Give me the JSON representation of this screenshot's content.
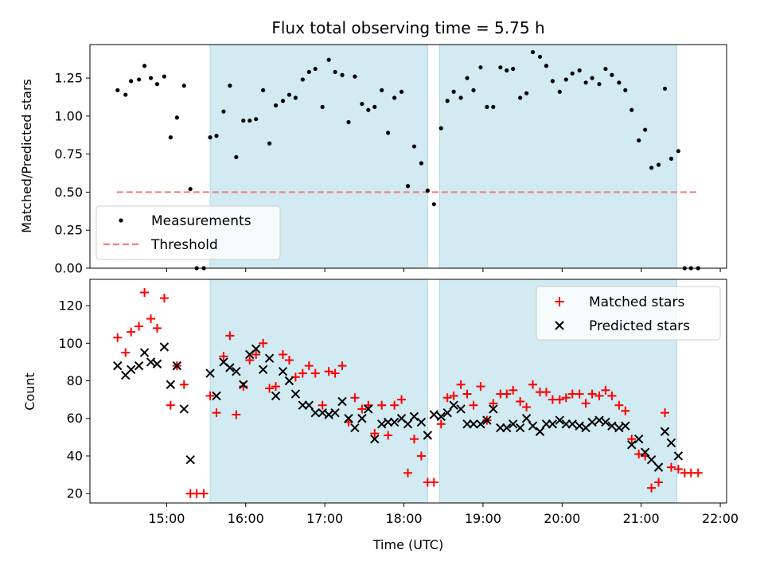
{
  "chart_data": {
    "type": "scatter",
    "title": "Flux total observing time = 5.75 h",
    "xlabel": "Time (UTC)",
    "x_ticks": [
      "15:00",
      "16:00",
      "17:00",
      "18:00",
      "19:00",
      "20:00",
      "21:00",
      "22:00"
    ],
    "x_ticks_hours": [
      15,
      16,
      17,
      18,
      19,
      20,
      21,
      22
    ],
    "xlim_hours": [
      14.03,
      22.08
    ],
    "colors": {
      "band": "#add8e6",
      "measurements": "#000000",
      "threshold": "#f08080",
      "matched": "#ff0000",
      "predicted": "#000000"
    },
    "observing_windows_hours": [
      [
        15.55,
        18.3
      ],
      [
        18.45,
        21.45
      ]
    ],
    "panels": [
      {
        "ylabel": "Matched/Predicted stars",
        "ylim": [
          0,
          1.47
        ],
        "y_ticks": [
          "0.00",
          "0.25",
          "0.50",
          "0.75",
          "1.00",
          "1.25"
        ],
        "y_tick_values": [
          0,
          0.25,
          0.5,
          0.75,
          1.0,
          1.25
        ],
        "legend_position": "lower-left",
        "legend": [
          "Measurements",
          "Threshold"
        ],
        "threshold": {
          "value": 0.5,
          "x_range_hours": [
            14.37,
            21.72
          ]
        },
        "series": [
          {
            "name": "Measurements",
            "marker": "dot",
            "x": [
              14.38,
              14.48,
              14.55,
              14.65,
              14.72,
              14.8,
              14.88,
              14.97,
              15.05,
              15.13,
              15.22,
              15.3,
              15.38,
              15.47,
              15.55,
              15.63,
              15.72,
              15.8,
              15.88,
              15.97,
              16.05,
              16.13,
              16.22,
              16.3,
              16.38,
              16.47,
              16.55,
              16.63,
              16.72,
              16.8,
              16.88,
              16.97,
              17.05,
              17.13,
              17.22,
              17.3,
              17.38,
              17.47,
              17.55,
              17.63,
              17.72,
              17.8,
              17.88,
              17.97,
              18.05,
              18.13,
              18.22,
              18.3,
              18.38,
              18.47,
              18.55,
              18.63,
              18.72,
              18.8,
              18.88,
              18.97,
              19.05,
              19.13,
              19.22,
              19.3,
              19.38,
              19.47,
              19.55,
              19.63,
              19.72,
              19.8,
              19.88,
              19.97,
              20.05,
              20.13,
              20.22,
              20.3,
              20.38,
              20.47,
              20.55,
              20.63,
              20.72,
              20.8,
              20.88,
              20.97,
              21.05,
              21.13,
              21.22,
              21.3,
              21.38,
              21.47,
              21.55,
              21.63,
              21.72
            ],
            "y": [
              1.17,
              1.14,
              1.23,
              1.24,
              1.33,
              1.25,
              1.21,
              1.26,
              0.86,
              0.99,
              1.2,
              0.52,
              0,
              0,
              0.86,
              0.87,
              1.03,
              1.2,
              0.73,
              0.97,
              0.97,
              0.98,
              1.17,
              0.82,
              1.07,
              1.1,
              1.14,
              1.12,
              1.24,
              1.29,
              1.31,
              1.06,
              1.37,
              1.29,
              1.27,
              0.96,
              1.26,
              1.08,
              1.04,
              1.06,
              1.17,
              0.89,
              1.12,
              1.16,
              0.54,
              0.8,
              0.69,
              0.51,
              0.42,
              0.92,
              1.1,
              1.16,
              1.12,
              1.25,
              1.17,
              1.32,
              1.06,
              1.06,
              1.32,
              1.3,
              1.31,
              1.12,
              1.15,
              1.42,
              1.39,
              1.33,
              1.23,
              1.16,
              1.24,
              1.28,
              1.3,
              1.22,
              1.25,
              1.21,
              1.31,
              1.27,
              1.22,
              1.17,
              1.04,
              0.84,
              0.91,
              0.66,
              0.68,
              1.18,
              0.72,
              0.77,
              0,
              0,
              0
            ]
          }
        ]
      },
      {
        "ylabel": "Count",
        "ylim": [
          15,
          134
        ],
        "y_ticks": [
          "20",
          "40",
          "60",
          "80",
          "100",
          "120"
        ],
        "y_tick_values": [
          20,
          40,
          60,
          80,
          100,
          120
        ],
        "legend_position": "upper-right",
        "legend": [
          "Matched stars",
          "Predicted stars"
        ],
        "series": [
          {
            "name": "Matched stars",
            "marker": "plus",
            "x": [
              14.38,
              14.48,
              14.55,
              14.65,
              14.72,
              14.8,
              14.88,
              14.97,
              15.05,
              15.13,
              15.22,
              15.3,
              15.38,
              15.47,
              15.55,
              15.63,
              15.72,
              15.8,
              15.88,
              15.97,
              16.05,
              16.13,
              16.22,
              16.3,
              16.38,
              16.47,
              16.55,
              16.63,
              16.72,
              16.8,
              16.88,
              16.97,
              17.05,
              17.13,
              17.22,
              17.3,
              17.38,
              17.47,
              17.55,
              17.63,
              17.72,
              17.8,
              17.88,
              17.97,
              18.05,
              18.13,
              18.22,
              18.3,
              18.38,
              18.47,
              18.55,
              18.63,
              18.72,
              18.8,
              18.88,
              18.97,
              19.05,
              19.13,
              19.22,
              19.3,
              19.38,
              19.47,
              19.55,
              19.63,
              19.72,
              19.8,
              19.88,
              19.97,
              20.05,
              20.13,
              20.22,
              20.3,
              20.38,
              20.47,
              20.55,
              20.63,
              20.72,
              20.8,
              20.88,
              20.97,
              21.05,
              21.13,
              21.22,
              21.3,
              21.38,
              21.47,
              21.55,
              21.63,
              21.72
            ],
            "y": [
              103,
              95,
              106,
              109,
              127,
              113,
              108,
              124,
              67,
              88,
              78,
              20,
              20,
              20,
              72,
              63,
              93,
              104,
              62,
              77,
              91,
              94,
              100,
              76,
              77,
              94,
              91,
              82,
              84,
              88,
              84,
              67,
              85,
              84,
              88,
              58,
              71,
              65,
              67,
              52,
              67,
              51,
              67,
              70,
              31,
              49,
              40,
              26,
              26,
              57,
              71,
              72,
              78,
              73,
              67,
              77,
              59,
              68,
              73,
              73,
              75,
              69,
              66,
              78,
              74,
              74,
              70,
              70,
              71,
              73,
              73,
              68,
              73,
              72,
              75,
              72,
              67,
              64,
              49,
              41,
              40,
              23,
              26,
              63,
              34,
              33,
              31,
              31,
              31
            ]
          },
          {
            "name": "Predicted stars",
            "marker": "x",
            "x": [
              14.38,
              14.48,
              14.55,
              14.65,
              14.72,
              14.8,
              14.88,
              14.97,
              15.05,
              15.13,
              15.22,
              15.3,
              15.55,
              15.63,
              15.72,
              15.8,
              15.88,
              15.97,
              16.05,
              16.13,
              16.22,
              16.3,
              16.38,
              16.47,
              16.55,
              16.63,
              16.72,
              16.8,
              16.88,
              16.97,
              17.05,
              17.13,
              17.22,
              17.3,
              17.38,
              17.47,
              17.55,
              17.63,
              17.72,
              17.8,
              17.88,
              17.97,
              18.05,
              18.13,
              18.22,
              18.3,
              18.38,
              18.47,
              18.55,
              18.63,
              18.72,
              18.8,
              18.88,
              18.97,
              19.05,
              19.13,
              19.22,
              19.3,
              19.38,
              19.47,
              19.55,
              19.63,
              19.72,
              19.8,
              19.88,
              19.97,
              20.05,
              20.13,
              20.22,
              20.3,
              20.38,
              20.47,
              20.55,
              20.63,
              20.72,
              20.8,
              20.88,
              20.97,
              21.05,
              21.13,
              21.22,
              21.3,
              21.38,
              21.47
            ],
            "y": [
              88,
              83,
              86,
              88,
              95,
              90,
              89,
              98,
              78,
              88,
              65,
              38,
              84,
              72,
              90,
              87,
              85,
              78,
              94,
              97,
              86,
              92,
              72,
              85,
              80,
              73,
              67,
              67,
              63,
              63,
              62,
              63,
              69,
              60,
              55,
              60,
              65,
              49,
              57,
              58,
              58,
              60,
              57,
              61,
              58,
              51,
              62,
              61,
              63,
              67,
              65,
              57,
              57,
              57,
              59,
              65,
              55,
              55,
              57,
              55,
              60,
              56,
              53,
              57,
              57,
              59,
              57,
              57,
              56,
              55,
              58,
              59,
              58,
              56,
              55,
              56,
              46,
              49,
              42,
              38,
              34,
              53,
              47,
              40
            ]
          }
        ]
      }
    ]
  }
}
